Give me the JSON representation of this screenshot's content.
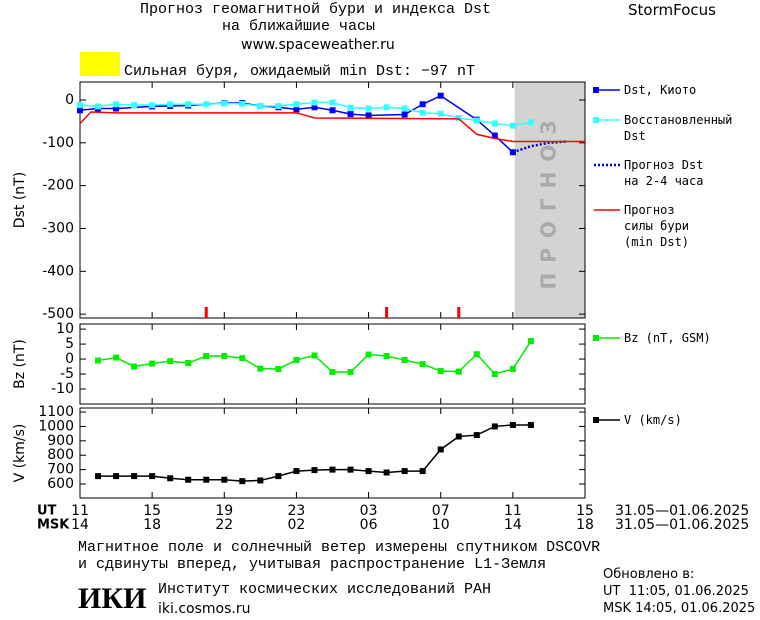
{
  "header": {
    "title": "Прогноз геомагнитной бури и индекса Dst",
    "subtitle": "на ближайшие часы",
    "url": "www.spaceweather.ru",
    "brand": "StormFocus"
  },
  "chart_data": [
    {
      "type": "line",
      "ylabel": "Dst (nT)",
      "xlim": [
        0,
        28
      ],
      "ylim": [
        -509,
        42
      ],
      "yticks": [
        0,
        -100,
        -200,
        -300,
        -400,
        -500
      ],
      "annotation": {
        "text": "Сильная буря, ожидаемый min Dst: −97 nT",
        "color": "#ffff00"
      },
      "shaded_region": {
        "xlim": [
          24.1,
          28
        ],
        "label": "ПРОГНОЗ",
        "color": "#d3d3d3"
      },
      "event_markers": {
        "color": "#ff0000",
        "x": [
          7,
          17,
          21
        ]
      },
      "series": [
        {
          "name": "Dst, Киото",
          "color": "#0000ff",
          "marker": "square",
          "dashed": false,
          "x": [
            0,
            1,
            2,
            4,
            5,
            6,
            8,
            9,
            10,
            11,
            12,
            13,
            14,
            15,
            16,
            18,
            19,
            20,
            22,
            23,
            24
          ],
          "values": [
            -24,
            -20,
            -20,
            -15,
            -14,
            -13,
            -7,
            -7,
            -14,
            -17,
            -22,
            -17,
            -24,
            -33,
            -36,
            -34,
            -10,
            10,
            -46,
            -83,
            -122
          ]
        },
        {
          "name": "Восстановленный\nDst",
          "color": "#33ffff",
          "marker": "square",
          "dashed": false,
          "x": [
            0,
            1,
            2,
            3,
            4,
            5,
            6,
            7,
            8,
            9,
            10,
            11,
            12,
            13,
            14,
            15,
            16,
            17,
            18,
            19,
            20,
            21,
            22,
            23,
            24,
            25
          ],
          "values": [
            -12,
            -15,
            -10,
            -12,
            -12,
            -10,
            -10,
            -10,
            -8,
            -9,
            -14,
            -14,
            -10,
            -6,
            -6,
            -18,
            -20,
            -17,
            -20,
            -30,
            -32,
            -42,
            -48,
            -55,
            -60,
            -52
          ]
        },
        {
          "name": "Прогноз Dst\nна 2-4 часа",
          "color": "#0000cc",
          "marker": "none",
          "dashed": true,
          "x": [
            24,
            25,
            26,
            27
          ],
          "values": [
            -122,
            -108,
            -100,
            -97
          ]
        },
        {
          "name": "Прогноз\nсилы бури\n(min Dst)",
          "color": "#ff0000",
          "marker": "none",
          "dashed": false,
          "x": [
            0,
            0.6,
            2,
            12,
            13,
            21,
            22,
            23,
            24,
            28
          ],
          "values": [
            -55,
            -28,
            -30,
            -30,
            -42,
            -44,
            -80,
            -90,
            -97,
            -97
          ]
        }
      ]
    },
    {
      "type": "line",
      "ylabel": "Bz (nT)",
      "xlim": [
        0,
        28
      ],
      "ylim": [
        -15,
        11.7
      ],
      "yticks": [
        10,
        5,
        0,
        -5,
        -10
      ],
      "series": [
        {
          "name": "Bz (nT, GSM)",
          "color": "#00ee00",
          "marker": "square",
          "dashed": false,
          "x": [
            1,
            2,
            3,
            4,
            5,
            6,
            7,
            8,
            9,
            10,
            11,
            12,
            13,
            14,
            15,
            16,
            17,
            18,
            19,
            20,
            21,
            22,
            23,
            24,
            25
          ],
          "values": [
            -0.5,
            0.5,
            -2.5,
            -1.5,
            -0.7,
            -1.3,
            1,
            1,
            0.3,
            -3.2,
            -3.3,
            -0.3,
            1.2,
            -4.3,
            -4.3,
            1.5,
            1,
            -0.3,
            -1.7,
            -4,
            -4.2,
            1.6,
            -5,
            -3.3,
            6
          ]
        }
      ]
    },
    {
      "type": "line",
      "ylabel": "V (km/s)",
      "xlim": [
        0,
        28
      ],
      "ylim": [
        503,
        1128
      ],
      "yticks": [
        1100,
        1000,
        900,
        800,
        700,
        600
      ],
      "xlabel": "UT",
      "x2label": "MSK",
      "date_range": "31.05—01.06.2025",
      "x2_date_range": "31.05—01.06.2025",
      "xticks": [
        {
          "value": 0,
          "label": "11"
        },
        {
          "value": 4,
          "label": "15"
        },
        {
          "value": 8,
          "label": "19"
        },
        {
          "value": 12,
          "label": "23"
        },
        {
          "value": 16,
          "label": "03"
        },
        {
          "value": 20,
          "label": "07"
        },
        {
          "value": 24,
          "label": "11"
        },
        {
          "value": 28,
          "label": "15"
        }
      ],
      "x2ticks": [
        {
          "value": 0,
          "label": "14"
        },
        {
          "value": 4,
          "label": "18"
        },
        {
          "value": 8,
          "label": "22"
        },
        {
          "value": 12,
          "label": "02"
        },
        {
          "value": 16,
          "label": "06"
        },
        {
          "value": 20,
          "label": "10"
        },
        {
          "value": 24,
          "label": "14"
        },
        {
          "value": 28,
          "label": "18"
        }
      ],
      "series": [
        {
          "name": "V (km/s)",
          "color": "#000000",
          "marker": "square",
          "dashed": false,
          "x": [
            1,
            2,
            3,
            4,
            5,
            6,
            7,
            8,
            9,
            10,
            11,
            12,
            13,
            14,
            15,
            16,
            17,
            18,
            19,
            20,
            21,
            22,
            23,
            24,
            25
          ],
          "values": [
            655,
            655,
            655,
            655,
            640,
            630,
            630,
            630,
            620,
            625,
            655,
            690,
            697,
            700,
            700,
            690,
            680,
            690,
            690,
            840,
            930,
            940,
            1000,
            1010,
            1010
          ]
        }
      ]
    }
  ],
  "footer": {
    "note": [
      "Магнитное поле и солнечный ветер измерены спутником DSCOVR",
      "и сдвинуты вперед, учитывая распространение L1-Земля"
    ],
    "logo": "ИКИ",
    "institute": "Институт космических исследований РАН",
    "site": "iki.cosmos.ru",
    "updated_label": "Обновлено в:",
    "updated": [
      "UT  11:05, 01.06.2025",
      "MSK 14:05, 01.06.2025"
    ]
  }
}
